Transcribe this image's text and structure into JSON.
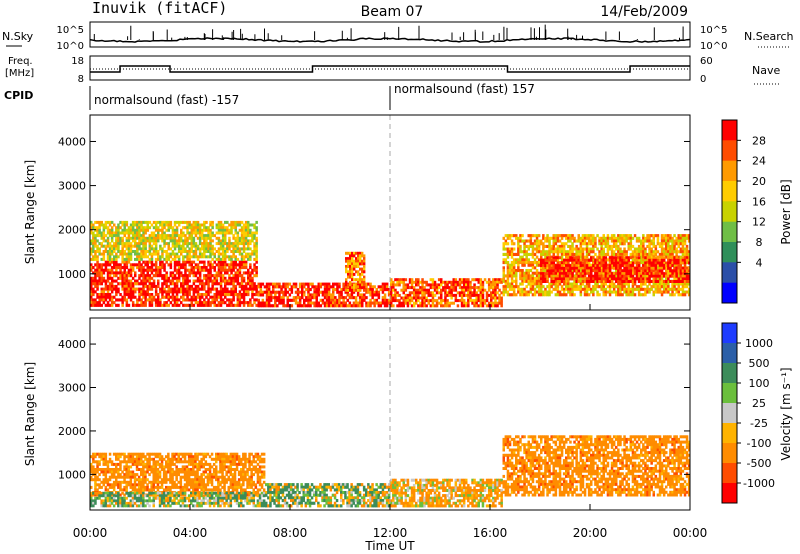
{
  "header": {
    "station": "Inuvik (fitACF)",
    "beam": "Beam 07",
    "date": "14/Feb/2009"
  },
  "strip_labels": {
    "nsky": "N.Sky",
    "nsearch": "N.Search",
    "freq_line1": "Freq.",
    "freq_line2": "[MHz]",
    "nave": "Nave",
    "cpid": "CPID",
    "nsky_ticks": [
      "10^5",
      "10^0"
    ],
    "nsearch_ticks": [
      "10^5",
      "10^0"
    ],
    "freq_ticks": [
      "18",
      "8"
    ],
    "nave_ticks": [
      "60",
      "0"
    ]
  },
  "cpid_labels": [
    {
      "text": "normalsound (fast) -157",
      "start_hour": 0
    },
    {
      "text": "normalsound (fast) 157",
      "start_hour": 12
    }
  ],
  "chart_data": [
    {
      "type": "heatmap",
      "name": "power",
      "ylabel": "Slant Range [km]",
      "xlabel": "",
      "x_range_hours": [
        0,
        24
      ],
      "ylim": [
        180,
        4600
      ],
      "yticks": [
        "1000",
        "2000",
        "3000",
        "4000"
      ],
      "colorbar": {
        "label": "Power [dB]",
        "ticks": [
          "28",
          "24",
          "20",
          "16",
          "12",
          "8",
          "4"
        ],
        "colors": [
          "#ff0000",
          "#ff4c00",
          "#ff9a00",
          "#ffcc00",
          "#c8d200",
          "#6fbe46",
          "#2f8f5a",
          "#2b4fa8",
          "#0000ff"
        ]
      },
      "regions": [
        {
          "t0": 0.0,
          "t1": 6.7,
          "r0": 260,
          "r1": 1300,
          "level": 28
        },
        {
          "t0": 0.0,
          "t1": 6.7,
          "r0": 1300,
          "r1": 2200,
          "level": 14
        },
        {
          "t0": 6.7,
          "t1": 12.0,
          "r0": 250,
          "r1": 800,
          "level": 26
        },
        {
          "t0": 10.2,
          "t1": 11.0,
          "r0": 600,
          "r1": 1500,
          "level": 22
        },
        {
          "t0": 12.0,
          "t1": 16.5,
          "r0": 250,
          "r1": 900,
          "level": 24
        },
        {
          "t0": 16.5,
          "t1": 24.0,
          "r0": 500,
          "r1": 1900,
          "level": 18
        },
        {
          "t0": 18.0,
          "t1": 24.0,
          "r0": 800,
          "r1": 1400,
          "level": 27
        }
      ]
    },
    {
      "type": "heatmap",
      "name": "velocity",
      "ylabel": "Slant Range [km]",
      "xlabel": "Time UT",
      "x_range_hours": [
        0,
        24
      ],
      "xticks": [
        "00:00",
        "04:00",
        "08:00",
        "12:00",
        "16:00",
        "20:00",
        "00:00"
      ],
      "ylim": [
        180,
        4600
      ],
      "yticks": [
        "1000",
        "2000",
        "3000",
        "4000"
      ],
      "colorbar": {
        "label": "Velocity [m s⁻¹]",
        "ticks": [
          "1000",
          "500",
          "100",
          "25",
          "-25",
          "-100",
          "-500",
          "-1000"
        ],
        "colors": [
          "#1e3cff",
          "#2b5fa8",
          "#3c8c5a",
          "#6bbf3c",
          "#c8c8c8",
          "#ffb300",
          "#ff8c00",
          "#ff4c00",
          "#ff0000"
        ]
      },
      "regions": [
        {
          "t0": 0.0,
          "t1": 7.0,
          "r0": 500,
          "r1": 1500,
          "level": -300
        },
        {
          "t0": 0.0,
          "t1": 7.0,
          "r0": 250,
          "r1": 600,
          "level": 80
        },
        {
          "t0": 7.0,
          "t1": 12.0,
          "r0": 250,
          "r1": 800,
          "level": 60
        },
        {
          "t0": 12.0,
          "t1": 16.5,
          "r0": 250,
          "r1": 900,
          "level": -150
        },
        {
          "t0": 16.5,
          "t1": 24.0,
          "r0": 500,
          "r1": 1900,
          "level": -300
        }
      ]
    }
  ]
}
